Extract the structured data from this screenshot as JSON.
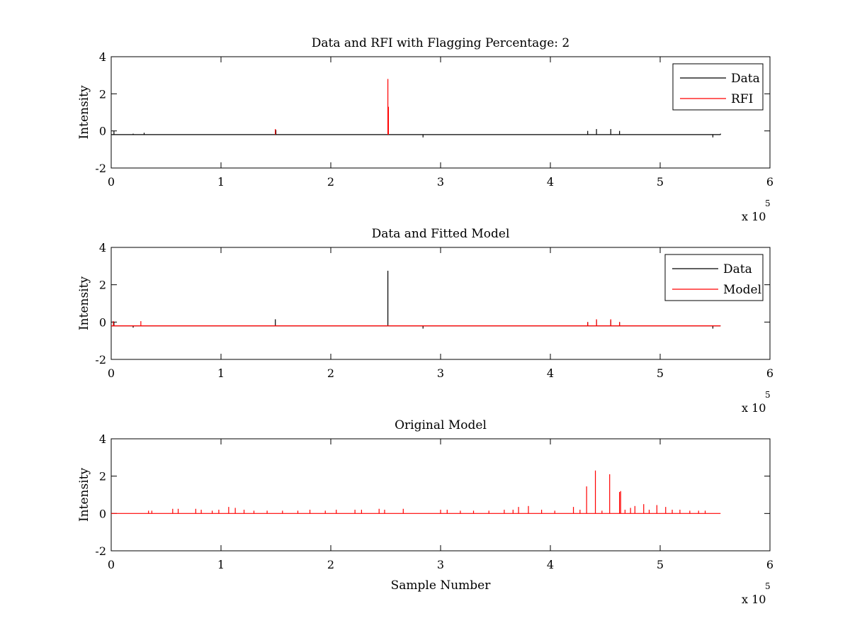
{
  "chart_data": [
    {
      "type": "line",
      "title": "Data and RFI with Flagging Percentage: 2",
      "ylabel": "Intensity",
      "xlabel": "",
      "xlim": [
        0,
        600000
      ],
      "ylim": [
        -2,
        4
      ],
      "xticks": [
        "0",
        "1",
        "2",
        "3",
        "4",
        "5",
        "6"
      ],
      "yticks": [
        "-2",
        "0",
        "2",
        "4"
      ],
      "x_exponent": {
        "base": "x 10",
        "power": "5"
      },
      "legend_position": "top-right",
      "series": [
        {
          "name": "Data",
          "color": "#000000",
          "baseline": -0.2,
          "spikes": [
            [
              2500,
              0.0
            ],
            [
              20000,
              -0.15
            ],
            [
              30000,
              -0.1
            ],
            [
              150000,
              0.05
            ],
            [
              284000,
              -0.35
            ],
            [
              434000,
              0.0
            ],
            [
              442000,
              0.1
            ],
            [
              455000,
              0.1
            ],
            [
              463000,
              0.0
            ],
            [
              548000,
              -0.35
            ],
            [
              555000,
              -0.15
            ]
          ]
        },
        {
          "name": "RFI",
          "color": "#ff0000",
          "baseline": null,
          "spikes": [
            [
              149500,
              0.1
            ],
            [
              252000,
              2.8
            ],
            [
              252500,
              1.3
            ]
          ]
        }
      ]
    },
    {
      "type": "line",
      "title": "Data and Fitted Model",
      "ylabel": "Intensity",
      "xlabel": "",
      "xlim": [
        0,
        600000
      ],
      "ylim": [
        -2,
        4
      ],
      "xticks": [
        "0",
        "1",
        "2",
        "3",
        "4",
        "5",
        "6"
      ],
      "yticks": [
        "-2",
        "0",
        "2",
        "4"
      ],
      "x_exponent": {
        "base": "x 10",
        "power": "5"
      },
      "legend_position": "top-right",
      "series": [
        {
          "name": "Data",
          "color": "#000000",
          "baseline": -0.2,
          "spikes": [
            [
              2500,
              0.0
            ],
            [
              20000,
              -0.3
            ],
            [
              149500,
              0.15
            ],
            [
              252000,
              2.75
            ],
            [
              284000,
              -0.35
            ],
            [
              434000,
              0.0
            ],
            [
              442000,
              0.1
            ],
            [
              455000,
              0.1
            ],
            [
              463000,
              0.0
            ],
            [
              548000,
              -0.35
            ]
          ]
        },
        {
          "name": "Model",
          "color": "#ff0000",
          "baseline": -0.2,
          "spikes": [
            [
              2000,
              0.05
            ],
            [
              27000,
              0.05
            ],
            [
              434000,
              0.0
            ],
            [
              442000,
              0.15
            ],
            [
              455000,
              0.15
            ],
            [
              463000,
              0.0
            ]
          ]
        }
      ]
    },
    {
      "type": "line",
      "title": "Original Model",
      "ylabel": "Intensity",
      "xlabel": "Sample Number",
      "xlim": [
        0,
        600000
      ],
      "ylim": [
        -2,
        4
      ],
      "xticks": [
        "0",
        "1",
        "2",
        "3",
        "4",
        "5",
        "6"
      ],
      "yticks": [
        "-2",
        "0",
        "2",
        "4"
      ],
      "x_exponent": {
        "base": "x 10",
        "power": "5"
      },
      "legend_position": "none",
      "series": [
        {
          "name": "",
          "color": "#ff0000",
          "baseline": 0,
          "spikes": [
            [
              34000,
              0.15
            ],
            [
              37000,
              0.15
            ],
            [
              56000,
              0.25
            ],
            [
              61000,
              0.25
            ],
            [
              77000,
              0.25
            ],
            [
              82000,
              0.2
            ],
            [
              92000,
              0.15
            ],
            [
              98000,
              0.2
            ],
            [
              107000,
              0.35
            ],
            [
              113000,
              0.3
            ],
            [
              121000,
              0.2
            ],
            [
              130000,
              0.15
            ],
            [
              142000,
              0.15
            ],
            [
              156000,
              0.15
            ],
            [
              170000,
              0.15
            ],
            [
              181000,
              0.2
            ],
            [
              195000,
              0.15
            ],
            [
              205000,
              0.2
            ],
            [
              222000,
              0.2
            ],
            [
              228000,
              0.2
            ],
            [
              244000,
              0.25
            ],
            [
              249000,
              0.2
            ],
            [
              266000,
              0.25
            ],
            [
              300000,
              0.2
            ],
            [
              306000,
              0.2
            ],
            [
              318000,
              0.15
            ],
            [
              330000,
              0.15
            ],
            [
              344000,
              0.15
            ],
            [
              358000,
              0.2
            ],
            [
              366000,
              0.2
            ],
            [
              371000,
              0.35
            ],
            [
              380000,
              0.4
            ],
            [
              392000,
              0.2
            ],
            [
              404000,
              0.15
            ],
            [
              421000,
              0.35
            ],
            [
              427000,
              0.2
            ],
            [
              433000,
              1.45
            ],
            [
              441000,
              2.3
            ],
            [
              447000,
              0.15
            ],
            [
              454000,
              2.1
            ],
            [
              463000,
              1.15
            ],
            [
              464000,
              1.2
            ],
            [
              468000,
              0.2
            ],
            [
              473000,
              0.3
            ],
            [
              477000,
              0.4
            ],
            [
              485000,
              0.5
            ],
            [
              490000,
              0.2
            ],
            [
              497000,
              0.45
            ],
            [
              505000,
              0.35
            ],
            [
              511000,
              0.2
            ],
            [
              518000,
              0.2
            ],
            [
              527000,
              0.15
            ],
            [
              535000,
              0.15
            ],
            [
              541000,
              0.15
            ]
          ]
        }
      ]
    }
  ]
}
